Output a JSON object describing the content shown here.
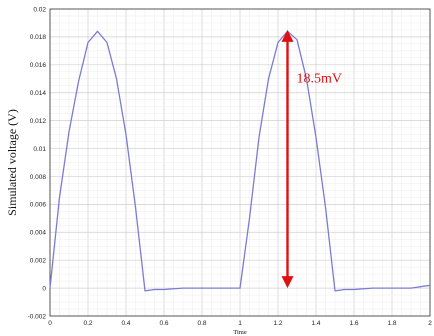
{
  "chart_data": {
    "type": "line",
    "title": "",
    "xlabel": "Time",
    "ylabel": "Simulated voltage (V)",
    "xlim": [
      0,
      2
    ],
    "ylim": [
      -0.002,
      0.02
    ],
    "x_ticks": [
      "0",
      "0.2",
      "0.4",
      "0.6",
      "0.8",
      "1",
      "1.2",
      "1.4",
      "1.6",
      "1.8",
      "2"
    ],
    "y_ticks": [
      "-0.002",
      "0",
      "0.002",
      "0.004",
      "0.006",
      "0.008",
      "0.01",
      "0.012",
      "0.014",
      "0.016",
      "0.018",
      "0.02"
    ],
    "grid": true,
    "series": [
      {
        "color": "#7b7bd6",
        "x": [
          0,
          0.05,
          0.1,
          0.15,
          0.2,
          0.25,
          0.3,
          0.35,
          0.4,
          0.45,
          0.5,
          0.55,
          0.6,
          0.7,
          0.8,
          0.9,
          1.0,
          1.05,
          1.1,
          1.15,
          1.2,
          1.25,
          1.3,
          1.35,
          1.4,
          1.45,
          1.5,
          1.55,
          1.6,
          1.7,
          1.8,
          1.9,
          2.0
        ],
        "y": [
          0,
          0.0065,
          0.0112,
          0.0148,
          0.0176,
          0.0184,
          0.0176,
          0.015,
          0.011,
          0.0058,
          -0.0002,
          -0.0001,
          -0.0001,
          0,
          0,
          0,
          0,
          0.005,
          0.0108,
          0.015,
          0.0176,
          0.0184,
          0.0178,
          0.015,
          0.0108,
          0.0058,
          -0.0002,
          -0.0001,
          -0.0001,
          0,
          0,
          0,
          0.0002
        ]
      }
    ],
    "annotation": {
      "label": "18.5mV",
      "color": "#e01010",
      "x": 1.25,
      "y_from": 0,
      "y_to": 0.0185
    }
  }
}
